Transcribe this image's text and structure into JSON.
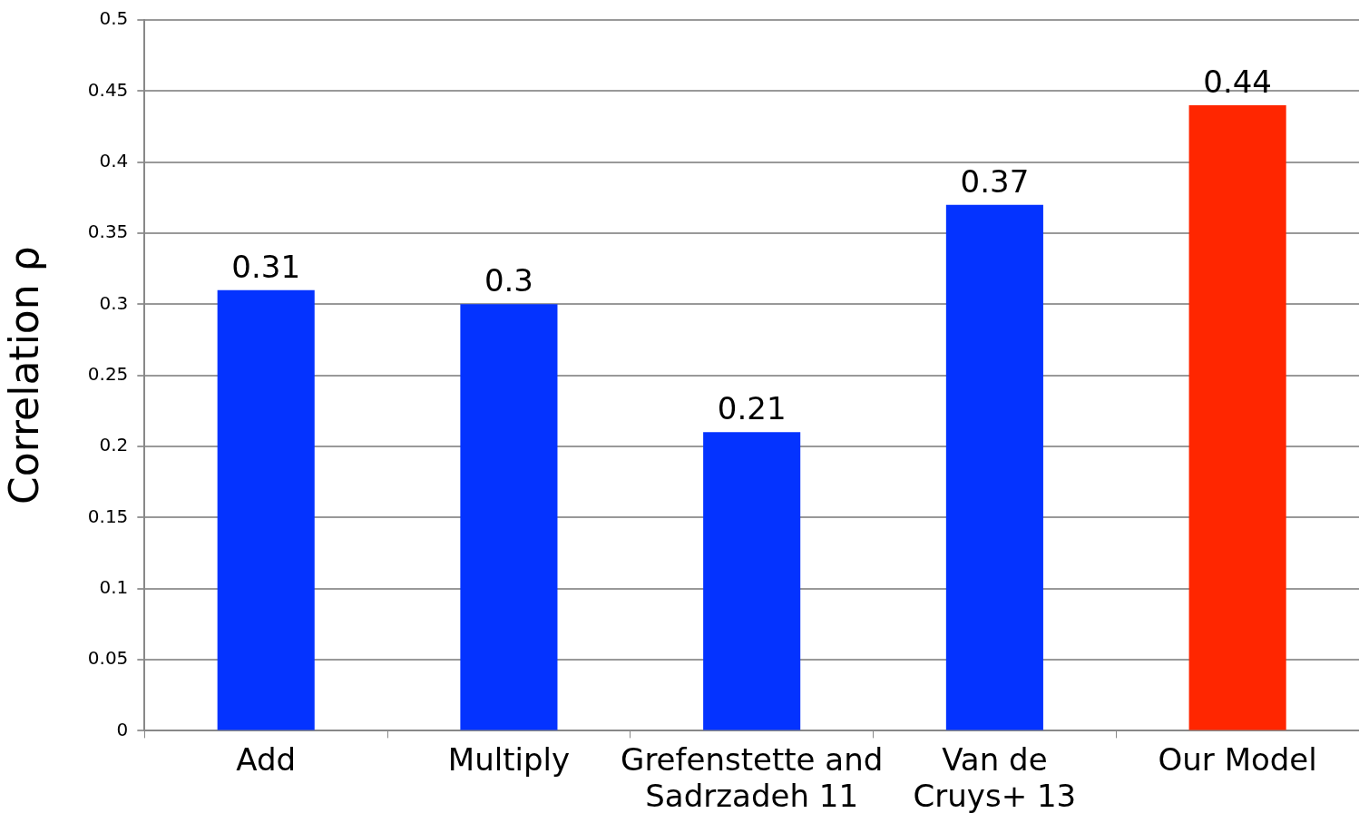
{
  "chart_data": {
    "type": "bar",
    "ylabel": "Correlation ρ",
    "categories": [
      "Add",
      "Multiply",
      "Grefenstette and\nSadrzadeh 11",
      "Van de\nCruys+ 13",
      "Our Model"
    ],
    "values": [
      0.31,
      0.3,
      0.21,
      0.37,
      0.44
    ],
    "colors": [
      "#0433ff",
      "#0433ff",
      "#0433ff",
      "#0433ff",
      "#ff2600"
    ],
    "ylim": [
      0,
      0.5
    ],
    "yticks": [
      0,
      0.05,
      0.1,
      0.15,
      0.2,
      0.25,
      0.3,
      0.35,
      0.4,
      0.45,
      0.5
    ],
    "grid": "y",
    "data_labels": true
  }
}
